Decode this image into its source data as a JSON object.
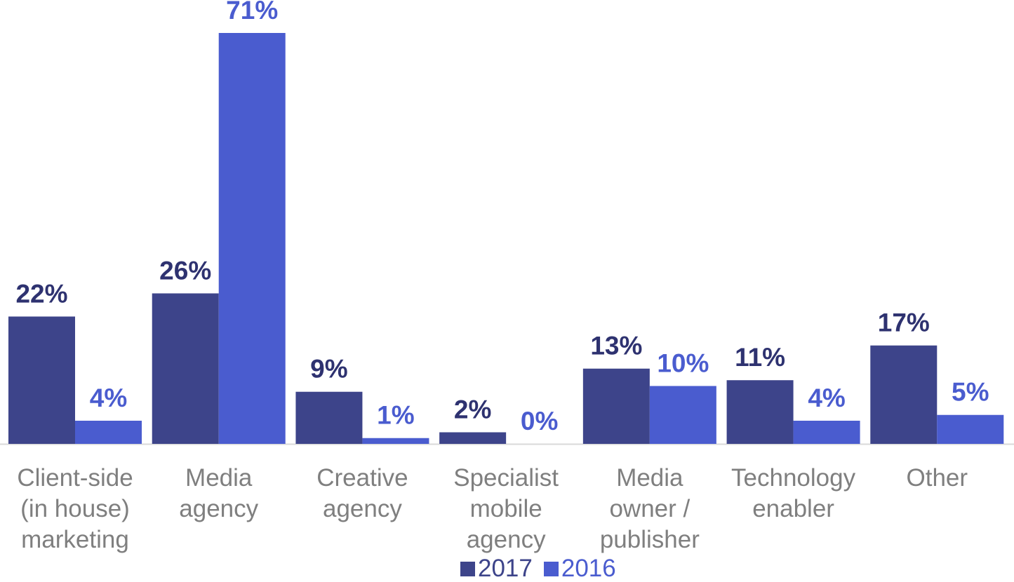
{
  "chart_data": {
    "type": "bar",
    "title": "",
    "xlabel": "",
    "ylabel": "",
    "ylim": [
      0,
      71
    ],
    "grid": false,
    "legend_position": "bottom-center",
    "categories": [
      "Client-side\n(in house)\nmarketing",
      "Media\nagency",
      "Creative\nagency",
      "Specialist\nmobile\nagency",
      "Media\nowner /\npublisher",
      "Technology\nenabler",
      "Other"
    ],
    "series": [
      {
        "name": "2017",
        "color": "#3d448a",
        "label_color": "#2e3270",
        "values": [
          22,
          26,
          9,
          2,
          13,
          11,
          17
        ],
        "labels": [
          "22%",
          "26%",
          "9%",
          "2%",
          "13%",
          "11%",
          "17%"
        ]
      },
      {
        "name": "2016",
        "color": "#4a5ccf",
        "label_color": "#4a5ccf",
        "values": [
          4,
          71,
          1,
          0,
          10,
          4,
          5
        ],
        "labels": [
          "4%",
          "71%",
          "1%",
          "0%",
          "10%",
          "4%",
          "5%"
        ]
      }
    ],
    "axis_color": "#d9d9d9",
    "category_label_color": "#7f7f7f"
  }
}
